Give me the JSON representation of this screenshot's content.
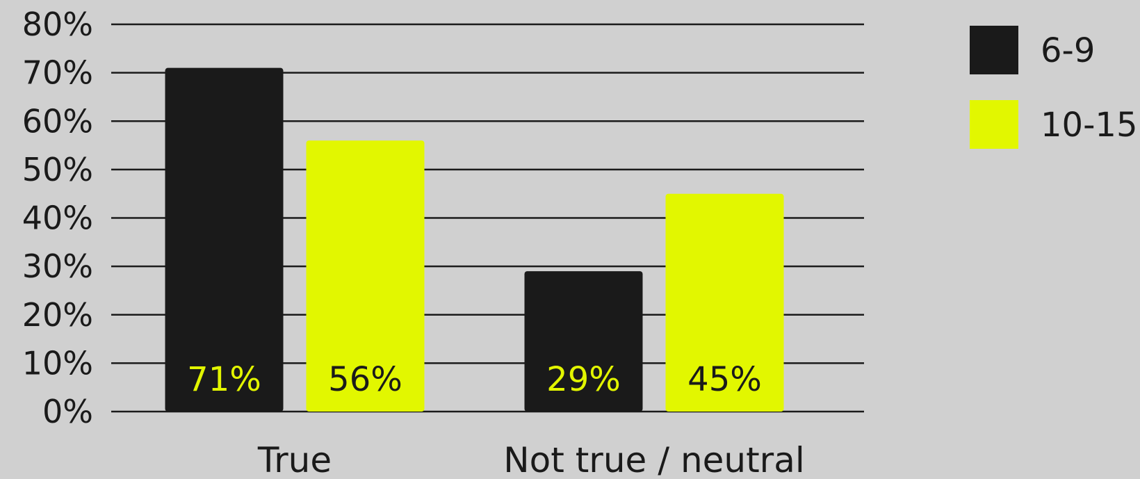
{
  "chart_data": {
    "type": "bar",
    "categories": [
      "True",
      "Not true / neutral"
    ],
    "series": [
      {
        "name": "6-9",
        "values": [
          71,
          29
        ],
        "color": "#1a1a1a",
        "label_color": "#e2f500"
      },
      {
        "name": "10-15",
        "values": [
          56,
          45
        ],
        "color": "#e2f700",
        "label_color": "#1a1a1a"
      }
    ],
    "data_labels": [
      [
        "71%",
        "29%"
      ],
      [
        "56%",
        "45%"
      ]
    ],
    "ylim": [
      0,
      80
    ],
    "yticks": [
      "0%",
      "10%",
      "20%",
      "30%",
      "40%",
      "50%",
      "60%",
      "70%",
      "80%"
    ],
    "grid": true,
    "legend_position": "top-right",
    "title": "",
    "xlabel": "",
    "ylabel": ""
  },
  "colors": {
    "background": "#d0d0d0",
    "gridline": "#1a1a1a",
    "text": "#1a1a1a"
  }
}
